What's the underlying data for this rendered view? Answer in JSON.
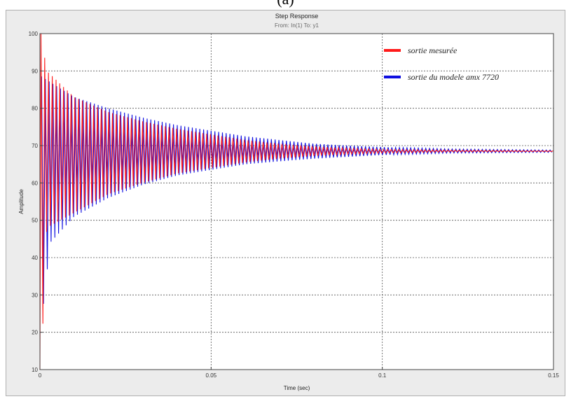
{
  "figure_label": "(a)",
  "colors": {
    "measured": "#ff1a1a",
    "model": "#1010e0",
    "axes_background": "#ffffff",
    "window_background": "#ececec",
    "grid": "#555555"
  },
  "chart_data": {
    "type": "line",
    "title": "Step Response",
    "subtitle": "From: In(1)  To: y1",
    "xlabel": "Time (sec)",
    "ylabel": "Amplitude",
    "xlim": [
      0,
      0.15
    ],
    "ylim": [
      10,
      100
    ],
    "x_ticks": [
      0,
      0.05,
      0.1,
      0.15
    ],
    "x_tick_labels": [
      "0",
      "0.05",
      "0.1",
      "0.15"
    ],
    "y_ticks": [
      10,
      20,
      30,
      40,
      50,
      60,
      70,
      80,
      90,
      100
    ],
    "y_tick_labels": [
      "10",
      "20",
      "30",
      "40",
      "50",
      "60",
      "70",
      "80",
      "90",
      "100"
    ],
    "grid": true,
    "legend_position": "top-right",
    "series": [
      {
        "name": "sortie du modele amx 7720",
        "color": "#1010e0",
        "steady_state": 68.5,
        "envelope": [
          {
            "t": 0.0005,
            "upper": 88.5,
            "lower": 23
          },
          {
            "t": 0.003,
            "upper": 87,
            "lower": 44
          },
          {
            "t": 0.01,
            "upper": 83,
            "lower": 51
          },
          {
            "t": 0.02,
            "upper": 80,
            "lower": 56
          },
          {
            "t": 0.03,
            "upper": 77.5,
            "lower": 59.5
          },
          {
            "t": 0.04,
            "upper": 75.5,
            "lower": 62
          },
          {
            "t": 0.05,
            "upper": 74,
            "lower": 63.5
          },
          {
            "t": 0.06,
            "upper": 72.5,
            "lower": 65
          },
          {
            "t": 0.07,
            "upper": 71.5,
            "lower": 65.8
          },
          {
            "t": 0.08,
            "upper": 70.5,
            "lower": 66.5
          },
          {
            "t": 0.09,
            "upper": 70,
            "lower": 67
          },
          {
            "t": 0.1,
            "upper": 69.6,
            "lower": 67.5
          },
          {
            "t": 0.12,
            "upper": 69.1,
            "lower": 68
          },
          {
            "t": 0.15,
            "upper": 68.8,
            "lower": 68.2
          }
        ]
      },
      {
        "name": "sortie mesurée",
        "color": "#ff1a1a",
        "steady_state": 68.5,
        "envelope": [
          {
            "t": 0.0003,
            "upper": 100,
            "lower": 10
          },
          {
            "t": 0.002,
            "upper": 90,
            "lower": 48
          },
          {
            "t": 0.01,
            "upper": 83,
            "lower": 52
          },
          {
            "t": 0.02,
            "upper": 79,
            "lower": 57
          },
          {
            "t": 0.03,
            "upper": 76.5,
            "lower": 60
          },
          {
            "t": 0.04,
            "upper": 74.5,
            "lower": 62.5
          },
          {
            "t": 0.05,
            "upper": 73,
            "lower": 64
          },
          {
            "t": 0.06,
            "upper": 71.5,
            "lower": 65.5
          },
          {
            "t": 0.07,
            "upper": 70.5,
            "lower": 66.5
          },
          {
            "t": 0.08,
            "upper": 69.8,
            "lower": 67.2
          },
          {
            "t": 0.09,
            "upper": 69.3,
            "lower": 67.7
          },
          {
            "t": 0.1,
            "upper": 69,
            "lower": 68
          },
          {
            "t": 0.12,
            "upper": 68.8,
            "lower": 68.3
          },
          {
            "t": 0.15,
            "upper": 68.6,
            "lower": 68.4
          }
        ]
      }
    ]
  }
}
